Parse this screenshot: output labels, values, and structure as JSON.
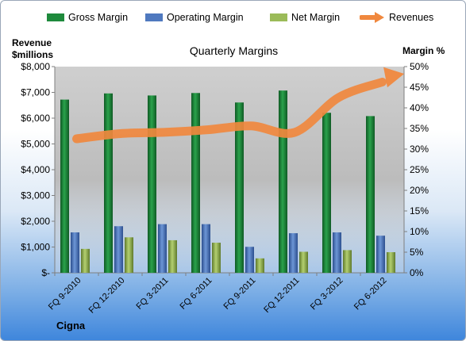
{
  "chart_data": {
    "type": "bar",
    "title": "Quarterly Margins",
    "categories": [
      "FQ 9-2010",
      "FQ 12-2010",
      "FQ 3-2011",
      "FQ 6-2011",
      "FQ 9-2011",
      "FQ 12-2011",
      "FQ 3-2012",
      "FQ 6-2012"
    ],
    "series": [
      {
        "name": "Gross Margin",
        "axis": "right",
        "values": [
          42,
          43.5,
          43,
          43.6,
          41.3,
          44.2,
          38.8,
          38
        ],
        "color": "#1e8a3c"
      },
      {
        "name": "Operating Margin",
        "axis": "right",
        "values": [
          9.8,
          11.3,
          11.8,
          11.8,
          6.3,
          9.6,
          9.8,
          9
        ],
        "color": "#4f79bf"
      },
      {
        "name": "Net Margin",
        "axis": "right",
        "values": [
          5.8,
          8.6,
          7.9,
          7.3,
          3.5,
          5.1,
          5.5,
          5
        ],
        "color": "#9bbb59"
      },
      {
        "name": "Revenues",
        "axis": "left",
        "type": "line",
        "values": [
          5200,
          5400,
          5450,
          5550,
          5700,
          5450,
          6800,
          7400
        ],
        "color": "#f0883e"
      }
    ],
    "ylabel_left": "Revenue $millions",
    "ylabel_right": "Margin %",
    "ylim_left": [
      0,
      8000
    ],
    "ylim_right": [
      0,
      50
    ],
    "yticks_left": [
      "$-",
      "$1,000",
      "$2,000",
      "$3,000",
      "$4,000",
      "$5,000",
      "$6,000",
      "$7,000",
      "$8,000"
    ],
    "yticks_right": [
      "0%",
      "5%",
      "10%",
      "15%",
      "20%",
      "25%",
      "30%",
      "35%",
      "40%",
      "45%",
      "50%"
    ],
    "legend_position": "top",
    "grid": false
  },
  "axis_titles": {
    "left_line1": "Revenue",
    "left_line2": "$millions",
    "right": "Margin %"
  },
  "footer_label": "Cigna"
}
